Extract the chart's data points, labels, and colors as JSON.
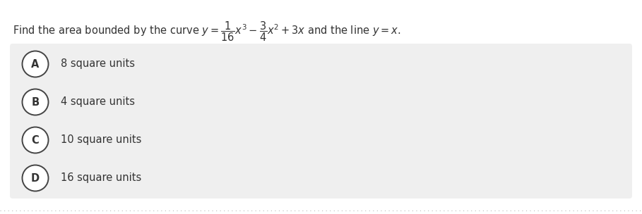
{
  "options": [
    {
      "label": "A",
      "text": "8 square units"
    },
    {
      "label": "B",
      "text": "4 square units"
    },
    {
      "label": "C",
      "text": "10 square units"
    },
    {
      "label": "D",
      "text": "16 square units"
    }
  ],
  "bg_color": "#ffffff",
  "option_bg_color": "#efefef",
  "text_color": "#333333",
  "circle_edge_color": "#444444",
  "dotted_line_color": "#bbbbbb",
  "font_size_title": 10.5,
  "font_size_options": 10.5,
  "fig_width": 9.09,
  "fig_height": 3.04,
  "dpi": 100
}
